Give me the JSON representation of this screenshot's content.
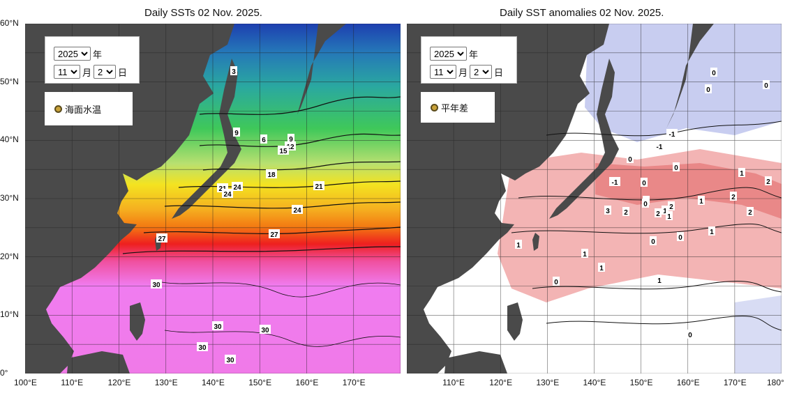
{
  "sst_panel": {
    "title": "Daily SSTs 02 Nov. 2025.",
    "year_value": "2025",
    "year_suffix": "年",
    "month_value": "11",
    "month_suffix": "月",
    "day_value": "2",
    "day_suffix": "日",
    "radio_label": "海面水温"
  },
  "anomaly_panel": {
    "title": "Daily SST anomalies 02 Nov. 2025.",
    "year_value": "2025",
    "year_suffix": "年",
    "month_value": "11",
    "month_suffix": "月",
    "day_value": "2",
    "day_suffix": "日",
    "radio_label": "平年差"
  },
  "axes": {
    "lat_ticks": [
      "60°N",
      "50°N",
      "40°N",
      "30°N",
      "20°N",
      "10°N",
      "0°"
    ],
    "lon_ticks_left": [
      "100°E",
      "110°E",
      "120°E",
      "130°E",
      "140°E",
      "150°E",
      "160°E",
      "170°E"
    ],
    "lon_ticks_right": [
      "110°E",
      "120°E",
      "130°E",
      "140°E",
      "150°E",
      "160°E",
      "170°E",
      "180°"
    ]
  },
  "sst_contour_labels": [
    "3",
    "9",
    "6",
    "9",
    "12",
    "15",
    "18",
    "21",
    "24",
    "21",
    "24",
    "24",
    "27",
    "27",
    "30",
    "30",
    "30",
    "30",
    "30"
  ],
  "anomaly_contour_labels": [
    "0",
    "0",
    "0",
    "-1",
    "-1",
    "0",
    "0",
    "-1",
    "0",
    "0",
    "1",
    "2",
    "1",
    "2",
    "3",
    "2",
    "0",
    "2",
    "1",
    "1",
    "2",
    "2",
    "1",
    "0",
    "0",
    "1",
    "1",
    "1",
    "1",
    "0",
    "0"
  ],
  "colors": {
    "land": "#4a4a4a",
    "sst_cold": "#1d3fb0",
    "sst_teal": "#2aa8a0",
    "sst_green": "#3fc85a",
    "sst_yellow": "#f4e320",
    "sst_orange": "#f37a12",
    "sst_red": "#ee1f1f",
    "sst_magenta": "#f07cf0",
    "anom_neg": "#c8cdf0",
    "anom_pos": "#f3b4b4",
    "anom_neutral": "#ffffff"
  }
}
